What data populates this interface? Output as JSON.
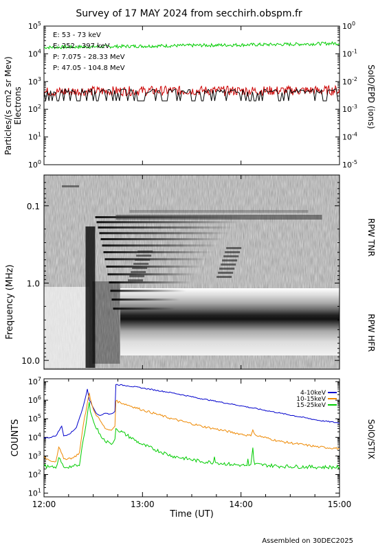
{
  "title": "Survey of 17 MAY 2024 from secchirh.obspm.fr",
  "footer": "Assembled on 30DEC2025",
  "chart_data": [
    {
      "type": "line",
      "panel": "SolO/EPD",
      "ylabel_left": "Particles/(s cm2 sr Mev)",
      "ylabel_left_2": "Electrons",
      "ylabel_right": "SoIO/EPD (ions)",
      "ylim_left": [
        1,
        100000
      ],
      "ylim_right": [
        1e-05,
        1
      ],
      "yscale": "log",
      "left_tick_labels": [
        "10^0",
        "10^1",
        "10^2",
        "10^3",
        "10^4",
        "10^5"
      ],
      "right_tick_labels": [
        "10^-5",
        "10^-4",
        "10^-3",
        "10^-2",
        "10^-1",
        "10^0"
      ],
      "series": [
        {
          "name": "E: 53 - 73 keV",
          "color": "#00cc00",
          "x": [
            "12:00",
            "12:30",
            "13:00",
            "13:30",
            "14:00",
            "14:30",
            "15:00"
          ],
          "values": [
            17000,
            18000,
            19000,
            20000,
            21000,
            22000,
            24000
          ]
        },
        {
          "name": "E: 252 - 397 keV",
          "color": "#cc0000",
          "x": [
            "12:00",
            "12:30",
            "13:00",
            "13:30",
            "14:00",
            "14:30",
            "15:00"
          ],
          "values": [
            420,
            450,
            460,
            470,
            460,
            470,
            480
          ]
        },
        {
          "name": "P: 7.075 - 28.33 MeV",
          "color": "#000000",
          "x": [
            "12:00",
            "12:30",
            "13:00",
            "13:30",
            "14:00",
            "14:30",
            "15:00"
          ],
          "values": [
            0.002,
            0.002,
            0.002,
            0.002,
            0.002,
            0.002,
            0.002
          ]
        },
        {
          "name": "P: 47.05 - 104.8 MeV",
          "color": "#0000cc",
          "x": [],
          "values": []
        }
      ]
    },
    {
      "type": "heatmap",
      "panel": "RPW",
      "ylabel": "Frequency (MHz)",
      "yscale": "log",
      "ylim": [
        0.04,
        13
      ],
      "y_tick_labels": [
        "0.1",
        "1.0",
        "10.0"
      ],
      "right_labels": [
        "RPW TNR",
        "RPW HFR"
      ]
    },
    {
      "type": "line",
      "panel": "SolO/STIX",
      "ylabel": "COUNTS",
      "ylabel_right": "SolO/STIX",
      "xlabel": "Time (UT)",
      "x_tick_labels": [
        "12:00",
        "13:00",
        "14:00",
        "15:00"
      ],
      "ylim": [
        10,
        10000000
      ],
      "yscale": "log",
      "y_tick_labels": [
        "10^1",
        "10^2",
        "10^3",
        "10^4",
        "10^5",
        "10^6",
        "10^7"
      ],
      "series": [
        {
          "name": "4-10keV",
          "color": "#0000cc",
          "x": [
            0,
            0.04,
            0.12,
            0.18,
            0.2,
            0.26,
            0.33,
            0.4,
            0.44,
            0.46,
            0.49,
            0.53,
            0.57,
            0.62,
            0.67,
            0.7,
            0.72,
            0.73,
            0.85,
            1.0,
            1.3,
            1.6,
            2.0,
            2.4,
            2.8,
            3.0
          ],
          "values": [
            9000,
            9500,
            12000,
            40000,
            12000,
            15000,
            35000,
            500000,
            4000000,
            1000000,
            500000,
            200000,
            150000,
            200000,
            180000,
            200000,
            250000,
            7000000,
            6000000,
            4500000,
            2500000,
            1200000,
            500000,
            200000,
            80000,
            60000
          ]
        },
        {
          "name": "10-15keV",
          "color": "#ee8800",
          "x": [
            0,
            0.05,
            0.12,
            0.15,
            0.2,
            0.3,
            0.36,
            0.4,
            0.46,
            0.47,
            0.49,
            0.52,
            0.57,
            0.62,
            0.67,
            0.7,
            0.72,
            0.73,
            1.0,
            1.3,
            1.6,
            2.0,
            2.1,
            2.12,
            2.15,
            2.4,
            2.8,
            3.0
          ],
          "values": [
            900,
            600,
            500,
            3000,
            700,
            800,
            1500,
            50000,
            2500000,
            1200000,
            500000,
            200000,
            80000,
            30000,
            25000,
            30000,
            40000,
            900000,
            300000,
            100000,
            40000,
            15000,
            12000,
            25000,
            13000,
            6000,
            3000,
            2500
          ]
        },
        {
          "name": "15-25keV",
          "color": "#00cc00",
          "x": [
            0,
            0.05,
            0.12,
            0.15,
            0.2,
            0.3,
            0.36,
            0.4,
            0.46,
            0.47,
            0.49,
            0.52,
            0.57,
            0.62,
            0.67,
            0.7,
            0.72,
            0.73,
            1.0,
            1.3,
            1.6,
            1.72,
            1.73,
            1.74,
            1.9,
            2.0,
            2.06,
            2.07,
            2.08,
            2.1,
            2.12,
            2.13,
            2.14,
            2.4,
            2.8,
            3.0
          ],
          "values": [
            300,
            250,
            220,
            800,
            250,
            280,
            300,
            8000,
            800000,
            250000,
            120000,
            40000,
            15000,
            6000,
            5000,
            5000,
            8000,
            30000,
            4000,
            1000,
            500,
            450,
            900,
            450,
            350,
            320,
            300,
            700,
            300,
            350,
            2800,
            600,
            350,
            280,
            250,
            250
          ]
        }
      ]
    }
  ]
}
